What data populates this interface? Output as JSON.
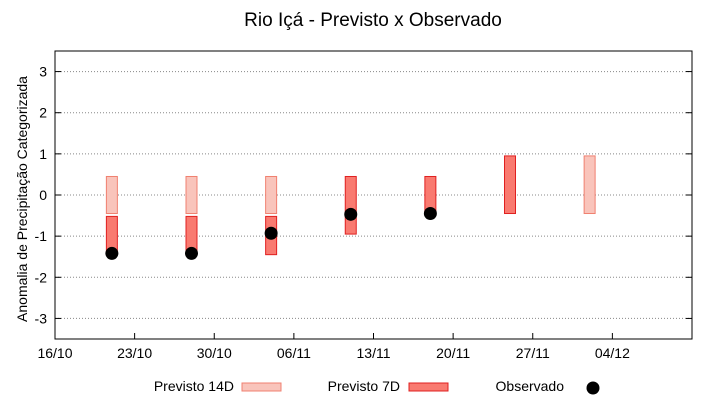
{
  "chart_data": {
    "type": "range-bar",
    "title": "Rio Içá - Previsto x Observado",
    "xlabel": "",
    "ylabel": "Anomalia de Precipitação Categorizada",
    "xlim": [
      0,
      56
    ],
    "ylim": [
      -3.5,
      3.5
    ],
    "x_ticks": [
      {
        "x": 0,
        "label": "16/10"
      },
      {
        "x": 7,
        "label": "23/10"
      },
      {
        "x": 14,
        "label": "30/10"
      },
      {
        "x": 21,
        "label": "06/11"
      },
      {
        "x": 28,
        "label": "13/11"
      },
      {
        "x": 35,
        "label": "20/11"
      },
      {
        "x": 42,
        "label": "27/11"
      },
      {
        "x": 49,
        "label": "04/12"
      }
    ],
    "y_ticks": [
      3,
      2,
      1,
      0,
      -1,
      -2,
      -3
    ],
    "grid": "horizontal dotted",
    "legend_position": "bottom",
    "series": [
      {
        "name": "Previsto 14D",
        "kind": "range",
        "fill": "#f9c4bb",
        "stroke": "#f08070",
        "points": [
          {
            "x": 5,
            "low": -0.45,
            "high": 0.45
          },
          {
            "x": 12,
            "low": -0.45,
            "high": 0.45
          },
          {
            "x": 19,
            "low": -0.45,
            "high": 0.45
          },
          {
            "x": 47,
            "low": -0.45,
            "high": 0.95
          }
        ]
      },
      {
        "name": "Previsto 7D",
        "kind": "range",
        "fill": "#f97a70",
        "stroke": "#e02020",
        "points": [
          {
            "x": 5,
            "low": -1.45,
            "high": -0.52
          },
          {
            "x": 12,
            "low": -1.45,
            "high": -0.52
          },
          {
            "x": 19,
            "low": -1.45,
            "high": -0.52
          },
          {
            "x": 26,
            "low": -0.95,
            "high": 0.45
          },
          {
            "x": 33,
            "low": -0.45,
            "high": 0.45
          },
          {
            "x": 40,
            "low": -0.45,
            "high": 0.95
          }
        ]
      },
      {
        "name": "Observado",
        "kind": "point",
        "fill": "#000000",
        "points": [
          {
            "x": 5,
            "y": -1.42
          },
          {
            "x": 12,
            "y": -1.42
          },
          {
            "x": 19,
            "y": -0.93
          },
          {
            "x": 26,
            "y": -0.47
          },
          {
            "x": 33,
            "y": -0.45
          }
        ]
      }
    ]
  }
}
